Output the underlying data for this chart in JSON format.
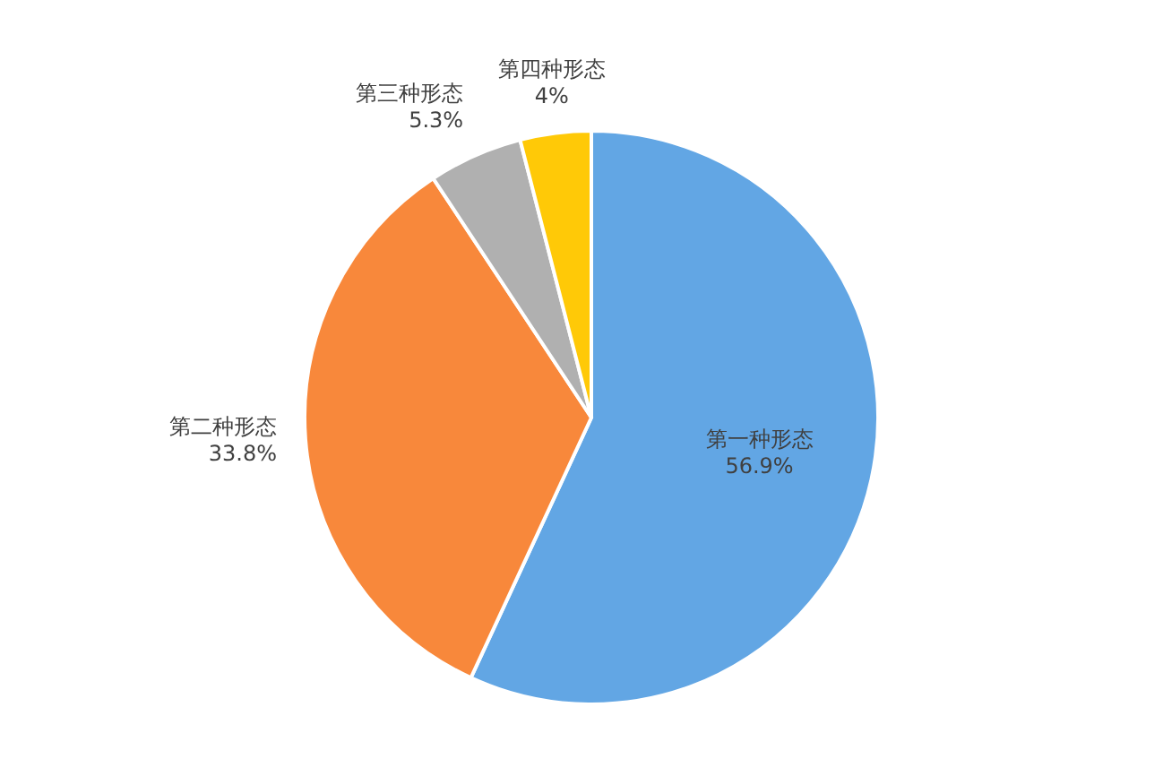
{
  "chart_data": {
    "type": "pie",
    "categories": [
      "第一种形态",
      "第二种形态",
      "第三种形态",
      "第四种形态"
    ],
    "values": [
      56.9,
      33.8,
      5.3,
      4
    ],
    "colors": [
      "#62a6e4",
      "#f8883b",
      "#b0b0b0",
      "#ffc907"
    ],
    "value_labels": [
      "56.9%",
      "33.8%",
      "5.3%",
      "4%"
    ]
  }
}
